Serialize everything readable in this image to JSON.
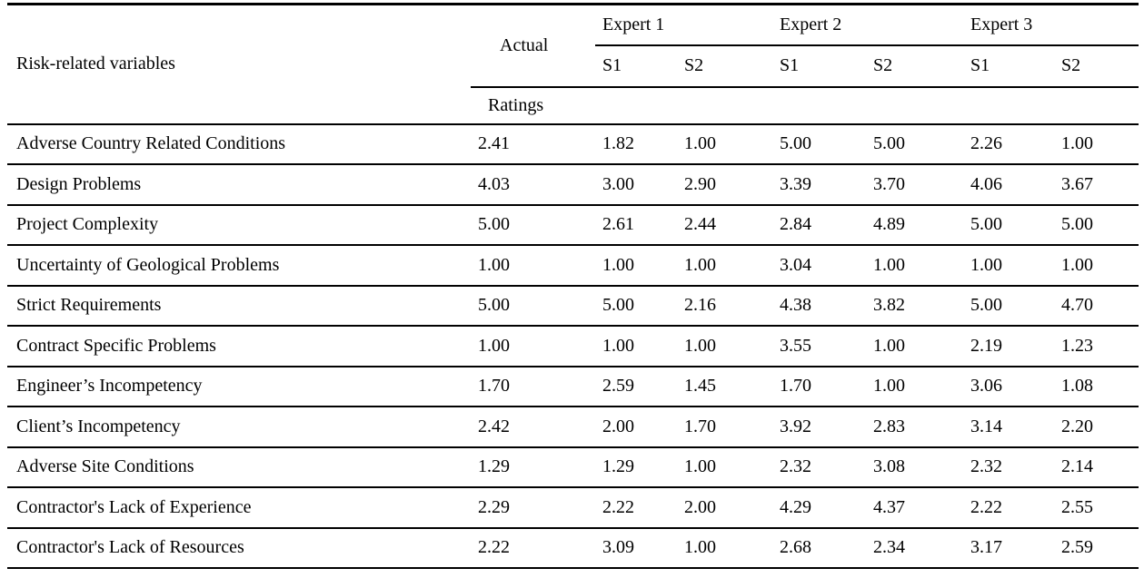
{
  "table": {
    "row_header_label": "Risk-related variables",
    "actual": {
      "label": "Actual",
      "sub_label": "Ratings"
    },
    "expert_groups": [
      {
        "label": "Expert 1",
        "sub": [
          "S1",
          "S2"
        ]
      },
      {
        "label": "Expert 2",
        "sub": [
          "S1",
          "S2"
        ]
      },
      {
        "label": "Expert 3",
        "sub": [
          "S1",
          "S2"
        ]
      }
    ],
    "rows": [
      {
        "label": "Adverse Country Related Conditions",
        "values": [
          "2.41",
          "1.82",
          "1.00",
          "5.00",
          "5.00",
          "2.26",
          "1.00"
        ]
      },
      {
        "label": "Design Problems",
        "values": [
          "4.03",
          "3.00",
          "2.90",
          "3.39",
          "3.70",
          "4.06",
          "3.67"
        ]
      },
      {
        "label": "Project Complexity",
        "values": [
          "5.00",
          "2.61",
          "2.44",
          "2.84",
          "4.89",
          "5.00",
          "5.00"
        ]
      },
      {
        "label": "Uncertainty of Geological Problems",
        "values": [
          "1.00",
          "1.00",
          "1.00",
          "3.04",
          "1.00",
          "1.00",
          "1.00"
        ]
      },
      {
        "label": "Strict Requirements",
        "values": [
          "5.00",
          "5.00",
          "2.16",
          "4.38",
          "3.82",
          "5.00",
          "4.70"
        ]
      },
      {
        "label": "Contract Specific Problems",
        "values": [
          "1.00",
          "1.00",
          "1.00",
          "3.55",
          "1.00",
          "2.19",
          "1.23"
        ]
      },
      {
        "label": "Engineer’s Incompetency",
        "values": [
          "1.70",
          "2.59",
          "1.45",
          "1.70",
          "1.00",
          "3.06",
          "1.08"
        ]
      },
      {
        "label": "Client’s Incompetency",
        "values": [
          "2.42",
          "2.00",
          "1.70",
          "3.92",
          "2.83",
          "3.14",
          "2.20"
        ]
      },
      {
        "label": "Adverse Site Conditions",
        "values": [
          "1.29",
          "1.29",
          "1.00",
          "2.32",
          "3.08",
          "2.32",
          "2.14"
        ]
      },
      {
        "label": "Contractor's Lack of Experience",
        "values": [
          "2.29",
          "2.22",
          "2.00",
          "4.29",
          "4.37",
          "2.22",
          "2.55"
        ]
      },
      {
        "label": "Contractor's Lack of Resources",
        "values": [
          "2.22",
          "3.09",
          "1.00",
          "2.68",
          "2.34",
          "3.17",
          "2.59"
        ]
      }
    ]
  }
}
